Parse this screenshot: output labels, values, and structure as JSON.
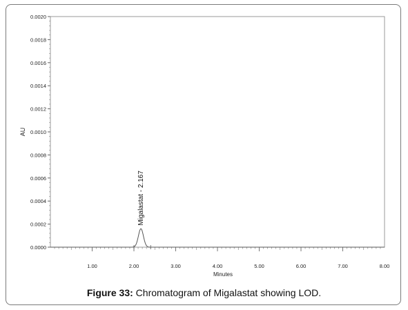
{
  "chart_data": {
    "type": "line",
    "title": "",
    "xlabel": "Minutes",
    "ylabel": "AU",
    "xlim": [
      0,
      8.0
    ],
    "ylim": [
      0,
      0.002
    ],
    "x_ticks": [
      1.0,
      2.0,
      3.0,
      4.0,
      5.0,
      6.0,
      7.0,
      8.0
    ],
    "x_tick_labels": [
      "1.00",
      "2.00",
      "3.00",
      "4.00",
      "5.00",
      "6.00",
      "7.00",
      "8.00"
    ],
    "y_ticks": [
      0,
      0.0002,
      0.0004,
      0.0006,
      0.0008,
      0.001,
      0.0012,
      0.0014,
      0.0016,
      0.0018,
      0.002
    ],
    "y_tick_labels": [
      "0.0000",
      "0.0002",
      "0.0004",
      "0.0006",
      "0.0008",
      "0.0010",
      "0.0012",
      "0.0014",
      "0.0016",
      "0.0018",
      "0.0020"
    ],
    "grid": false,
    "series": [
      {
        "peak": {
          "x": 2.167,
          "y": 0.00016,
          "width": 0.06
        },
        "baseline": 0.0,
        "x_range": [
          0,
          8.0
        ]
      }
    ],
    "annotations": [
      {
        "text": "Migalastat - 2.167",
        "x": 2.167,
        "y": 0.00017
      }
    ],
    "integration_markers": [
      2.0,
      2.4
    ]
  },
  "caption": {
    "label": "Figure 33:",
    "text": " Chromatogram of Migalastat showing LOD."
  }
}
